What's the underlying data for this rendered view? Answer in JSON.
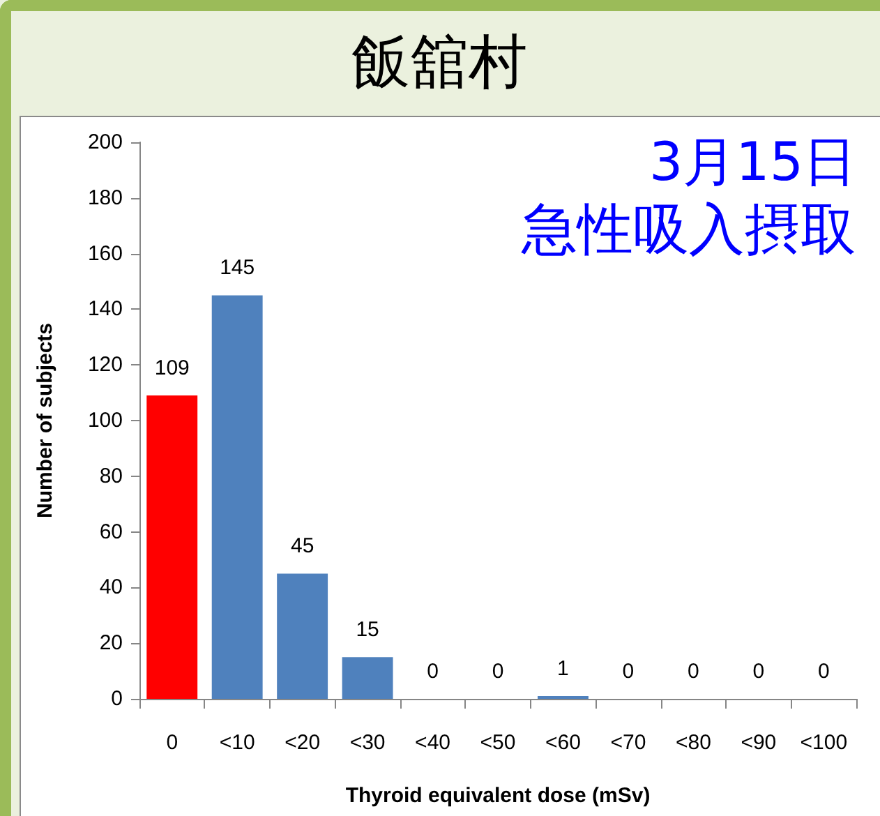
{
  "chart_data": {
    "type": "bar",
    "title": "飯舘村",
    "annotations": [
      "3月15日",
      "急性吸入摂取"
    ],
    "xlabel": "Thyroid equivalent dose (mSv)",
    "ylabel": "Number of subjects",
    "categories": [
      "0",
      "<10",
      "<20",
      "<30",
      "<40",
      "<50",
      "<60",
      "<70",
      "<80",
      "<90",
      "<100"
    ],
    "values": [
      109,
      145,
      45,
      15,
      0,
      0,
      1,
      0,
      0,
      0,
      0
    ],
    "colors": [
      "#ff0000",
      "#4f81bd",
      "#4f81bd",
      "#4f81bd",
      "#4f81bd",
      "#4f81bd",
      "#4f81bd",
      "#4f81bd",
      "#4f81bd",
      "#4f81bd",
      "#4f81bd"
    ],
    "ylim": [
      0,
      200
    ],
    "yticks": [
      0,
      20,
      40,
      60,
      80,
      100,
      120,
      140,
      160,
      180,
      200
    ],
    "grid": false,
    "data_labels": true
  }
}
